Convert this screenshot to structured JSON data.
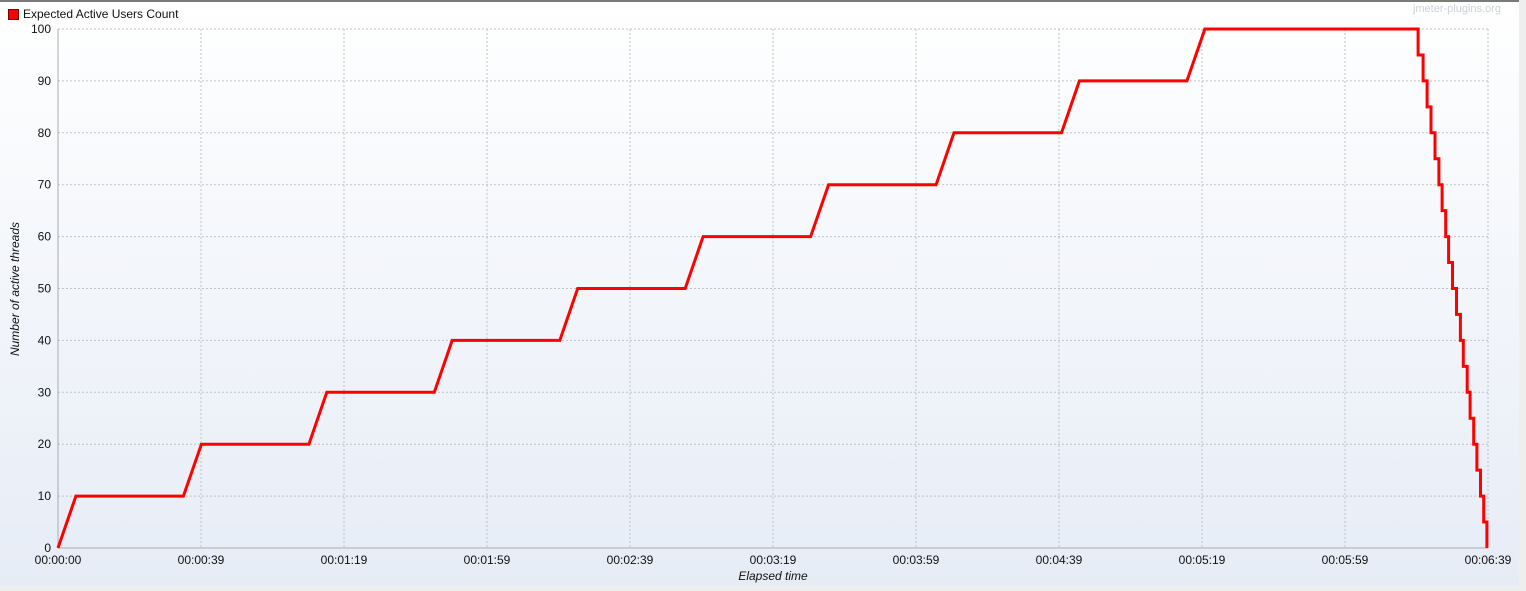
{
  "chart_data": {
    "type": "line",
    "title": "",
    "xlabel": "Elapsed time",
    "ylabel": "Number of active threads",
    "xlim_seconds": [
      0,
      399
    ],
    "ylim": [
      0,
      100
    ],
    "grid": true,
    "legend_position": "top-left",
    "x_tick_labels": [
      "00:00:00",
      "00:00:39",
      "00:01:19",
      "00:01:59",
      "00:02:39",
      "00:03:19",
      "00:03:59",
      "00:04:39",
      "00:05:19",
      "00:05:59",
      "00:06:39"
    ],
    "y_tick_labels": [
      "0",
      "10",
      "20",
      "30",
      "40",
      "50",
      "60",
      "70",
      "80",
      "90",
      "100"
    ],
    "watermark": "jmeter-plugins.org",
    "series": [
      {
        "name": "Expected Active Users Count",
        "color": "#ff0000",
        "points_seconds_users": [
          [
            0,
            0
          ],
          [
            5,
            10
          ],
          [
            35,
            10
          ],
          [
            40,
            20
          ],
          [
            70,
            20
          ],
          [
            75,
            30
          ],
          [
            105,
            30
          ],
          [
            110,
            40
          ],
          [
            140,
            40
          ],
          [
            145,
            50
          ],
          [
            175,
            50
          ],
          [
            180,
            60
          ],
          [
            210,
            60
          ],
          [
            215,
            70
          ],
          [
            245,
            70
          ],
          [
            250,
            80
          ],
          [
            280,
            80
          ],
          [
            285,
            90
          ],
          [
            315,
            90
          ],
          [
            320,
            100
          ],
          [
            379.5,
            100
          ],
          [
            379.5,
            95
          ],
          [
            380.9,
            95
          ],
          [
            380.9,
            90
          ],
          [
            382,
            90
          ],
          [
            382,
            85
          ],
          [
            383.1,
            85
          ],
          [
            383.1,
            80
          ],
          [
            384.2,
            80
          ],
          [
            384.2,
            75
          ],
          [
            385.3,
            75
          ],
          [
            385.3,
            70
          ],
          [
            386.2,
            70
          ],
          [
            386.2,
            65
          ],
          [
            387.2,
            65
          ],
          [
            387.2,
            60
          ],
          [
            388,
            60
          ],
          [
            388,
            55
          ],
          [
            389.1,
            55
          ],
          [
            389.1,
            50
          ],
          [
            390.2,
            50
          ],
          [
            390.2,
            45
          ],
          [
            391.3,
            45
          ],
          [
            391.3,
            40
          ],
          [
            392.1,
            40
          ],
          [
            392.1,
            35
          ],
          [
            393.2,
            35
          ],
          [
            393.2,
            30
          ],
          [
            394,
            30
          ],
          [
            394,
            25
          ],
          [
            395,
            25
          ],
          [
            395,
            20
          ],
          [
            395.9,
            20
          ],
          [
            395.9,
            15
          ],
          [
            396.9,
            15
          ],
          [
            396.9,
            10
          ],
          [
            397.8,
            10
          ],
          [
            397.8,
            5
          ],
          [
            398.7,
            5
          ],
          [
            398.7,
            0
          ]
        ]
      }
    ]
  }
}
